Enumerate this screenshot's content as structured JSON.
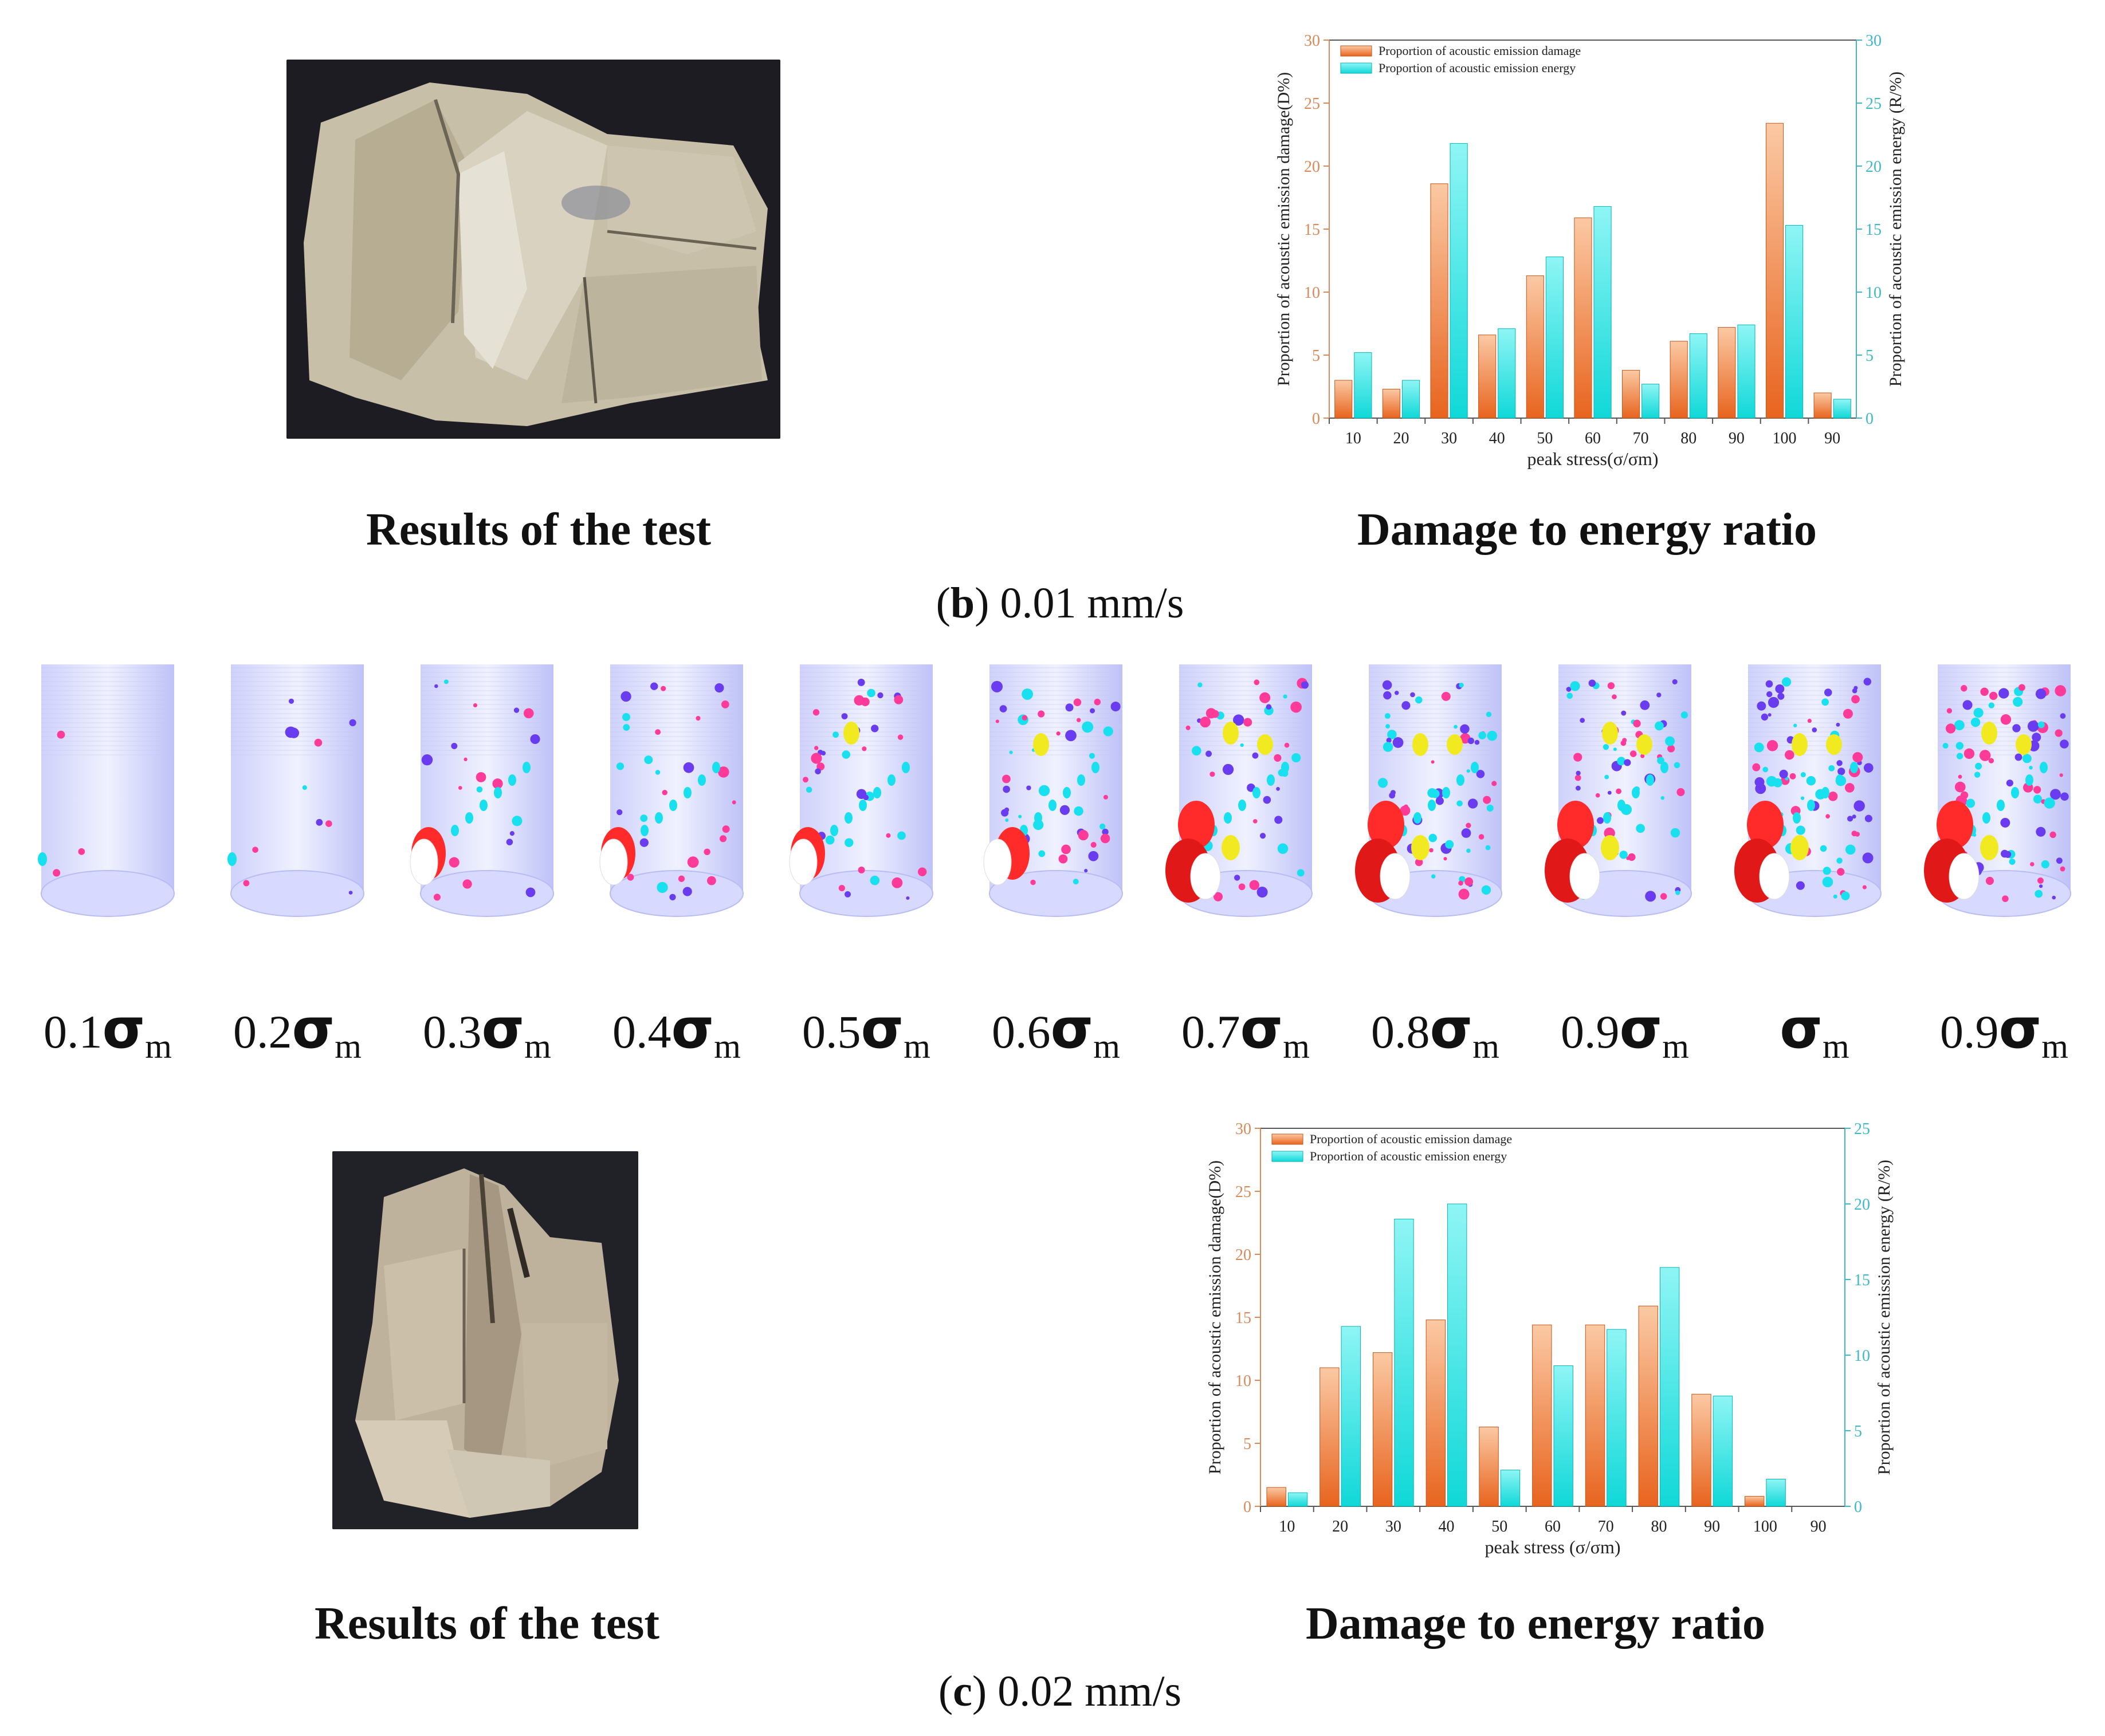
{
  "section_b": {
    "photo_caption": "Results of the test",
    "chart_caption": "Damage to energy ratio",
    "label_letter": "b",
    "label_rest": ") 0.01 mm/s",
    "label_open": "("
  },
  "section_c": {
    "photo_caption": "Results of the test",
    "chart_caption": "Damage to energy ratio",
    "label_letter": "c",
    "label_rest": ") 0.02 mm/s",
    "label_open": "("
  },
  "stress_labels": [
    {
      "prefix": "0.1",
      "sig": "σ",
      "sub": "m"
    },
    {
      "prefix": "0.2",
      "sig": "σ",
      "sub": "m"
    },
    {
      "prefix": "0.3",
      "sig": "σ",
      "sub": "m"
    },
    {
      "prefix": "0.4",
      "sig": "σ",
      "sub": "m"
    },
    {
      "prefix": "0.5",
      "sig": "σ",
      "sub": "m"
    },
    {
      "prefix": "0.6",
      "sig": "σ",
      "sub": "m"
    },
    {
      "prefix": "0.7",
      "sig": "σ",
      "sub": "m"
    },
    {
      "prefix": "0.8",
      "sig": "σ",
      "sub": "m"
    },
    {
      "prefix": "0.9",
      "sig": "σ",
      "sub": "m"
    },
    {
      "prefix": "",
      "sig": "σ",
      "sub": "m"
    },
    {
      "prefix": "0.9",
      "sig": "σ",
      "sub": "m"
    }
  ],
  "colors": {
    "damage": "#f08a4b",
    "energy": "#2ee6e6",
    "left_axis": "#d98a5a",
    "right_axis": "#3fb8c8",
    "cylinder": "#aab0f5"
  },
  "chart_data": [
    {
      "type": "bar",
      "title": "",
      "categories": [
        "10",
        "20",
        "30",
        "40",
        "50",
        "60",
        "70",
        "80",
        "90",
        "100",
        "90"
      ],
      "series": [
        {
          "name": "Proportion of acoustic emission damage",
          "axis": "left",
          "values": [
            3.0,
            2.3,
            18.6,
            6.6,
            11.3,
            15.9,
            3.8,
            6.1,
            7.2,
            23.4,
            2.0
          ]
        },
        {
          "name": "Proportion of acoustic emission energy",
          "axis": "right",
          "values": [
            5.2,
            3.0,
            21.8,
            7.1,
            12.8,
            16.8,
            2.7,
            6.7,
            7.4,
            15.3,
            1.5
          ]
        }
      ],
      "xlabel": "peak stress(σ/σm)",
      "ylabel": "Proportion of acoustic emission damage(D%)",
      "y2label": "Proportion of acoustic emission energy (R/%)",
      "ylim": [
        0,
        30
      ],
      "y2lim": [
        0,
        30
      ],
      "yticks": [
        0,
        5,
        10,
        15,
        20,
        25,
        30
      ],
      "y2ticks": [
        0,
        5,
        10,
        15,
        20,
        25,
        30
      ],
      "legend": "top-left"
    },
    {
      "type": "bar",
      "title": "",
      "categories": [
        "10",
        "20",
        "30",
        "40",
        "50",
        "60",
        "70",
        "80",
        "90",
        "100",
        "90"
      ],
      "series": [
        {
          "name": "Proportion of acoustic emission damage",
          "axis": "left",
          "values": [
            1.5,
            11.0,
            12.2,
            14.8,
            6.3,
            14.4,
            14.4,
            15.9,
            8.9,
            0.8,
            0.0
          ]
        },
        {
          "name": "Proportion of acoustic emission energy",
          "axis": "right",
          "values": [
            0.9,
            11.9,
            19.0,
            20.0,
            2.4,
            9.3,
            11.7,
            15.8,
            7.3,
            1.8,
            0.0
          ]
        }
      ],
      "xlabel": "peak stress (σ/σm)",
      "ylabel": "Proportion of acoustic emission damage(D%)",
      "y2label": "Proportion of acoustic emission energy (R/%)",
      "ylim": [
        0,
        30
      ],
      "y2lim": [
        0,
        25
      ],
      "yticks": [
        0,
        5,
        10,
        15,
        20,
        25,
        30
      ],
      "y2ticks": [
        0,
        5,
        10,
        15,
        20,
        25
      ],
      "legend": "top-left"
    }
  ]
}
